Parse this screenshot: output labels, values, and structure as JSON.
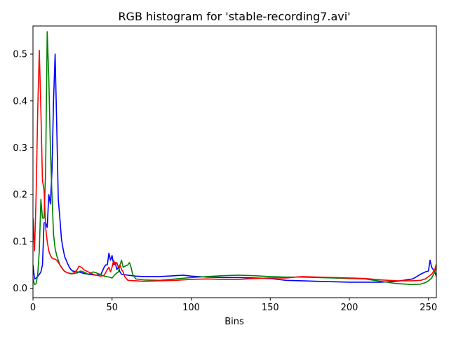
{
  "chart_data": {
    "type": "line",
    "title": "RGB histogram for 'stable-recording7.avi'",
    "xlabel": "Bins",
    "ylabel": "",
    "xlim": [
      0,
      255
    ],
    "ylim": [
      -0.02,
      0.56
    ],
    "xticks": [
      0,
      50,
      100,
      150,
      200,
      250
    ],
    "yticks": [
      0.0,
      0.1,
      0.2,
      0.3,
      0.4,
      0.5
    ],
    "grid": false,
    "series": [
      {
        "color": "#0000ff",
        "points": [
          [
            0,
            0.05
          ],
          [
            1,
            0.02
          ],
          [
            2,
            0.022
          ],
          [
            3,
            0.025
          ],
          [
            4,
            0.03
          ],
          [
            5,
            0.035
          ],
          [
            6,
            0.05
          ],
          [
            7,
            0.14
          ],
          [
            8,
            0.14
          ],
          [
            9,
            0.13
          ],
          [
            10,
            0.2
          ],
          [
            11,
            0.18
          ],
          [
            12,
            0.25
          ],
          [
            13,
            0.4
          ],
          [
            14,
            0.5
          ],
          [
            15,
            0.35
          ],
          [
            16,
            0.19
          ],
          [
            17,
            0.15
          ],
          [
            18,
            0.105
          ],
          [
            19,
            0.085
          ],
          [
            20,
            0.068
          ],
          [
            21,
            0.06
          ],
          [
            22,
            0.052
          ],
          [
            23,
            0.045
          ],
          [
            24,
            0.04
          ],
          [
            25,
            0.037
          ],
          [
            28,
            0.035
          ],
          [
            30,
            0.034
          ],
          [
            32,
            0.032
          ],
          [
            35,
            0.03
          ],
          [
            40,
            0.028
          ],
          [
            43,
            0.03
          ],
          [
            45,
            0.045
          ],
          [
            46,
            0.05
          ],
          [
            47,
            0.05
          ],
          [
            48,
            0.075
          ],
          [
            49,
            0.06
          ],
          [
            50,
            0.07
          ],
          [
            51,
            0.05
          ],
          [
            52,
            0.055
          ],
          [
            53,
            0.04
          ],
          [
            54,
            0.045
          ],
          [
            55,
            0.035
          ],
          [
            56,
            0.03
          ],
          [
            60,
            0.028
          ],
          [
            65,
            0.026
          ],
          [
            70,
            0.025
          ],
          [
            80,
            0.025
          ],
          [
            90,
            0.027
          ],
          [
            95,
            0.028
          ],
          [
            100,
            0.026
          ],
          [
            110,
            0.024
          ],
          [
            120,
            0.023
          ],
          [
            130,
            0.023
          ],
          [
            140,
            0.022
          ],
          [
            150,
            0.021
          ],
          [
            160,
            0.017
          ],
          [
            170,
            0.016
          ],
          [
            180,
            0.015
          ],
          [
            190,
            0.014
          ],
          [
            200,
            0.013
          ],
          [
            210,
            0.013
          ],
          [
            220,
            0.013
          ],
          [
            230,
            0.015
          ],
          [
            240,
            0.02
          ],
          [
            245,
            0.03
          ],
          [
            248,
            0.035
          ],
          [
            250,
            0.037
          ],
          [
            251,
            0.06
          ],
          [
            252,
            0.045
          ],
          [
            253,
            0.04
          ],
          [
            254,
            0.035
          ],
          [
            255,
            0.025
          ]
        ]
      },
      {
        "color": "#008000",
        "points": [
          [
            0,
            0.02
          ],
          [
            1,
            0.008
          ],
          [
            2,
            0.01
          ],
          [
            3,
            0.03
          ],
          [
            4,
            0.08
          ],
          [
            5,
            0.19
          ],
          [
            6,
            0.15
          ],
          [
            7,
            0.15
          ],
          [
            8,
            0.25
          ],
          [
            9,
            0.548
          ],
          [
            10,
            0.45
          ],
          [
            11,
            0.3
          ],
          [
            12,
            0.2
          ],
          [
            13,
            0.115
          ],
          [
            14,
            0.085
          ],
          [
            15,
            0.07
          ],
          [
            16,
            0.06
          ],
          [
            17,
            0.05
          ],
          [
            18,
            0.045
          ],
          [
            19,
            0.04
          ],
          [
            20,
            0.036
          ],
          [
            22,
            0.033
          ],
          [
            25,
            0.031
          ],
          [
            28,
            0.033
          ],
          [
            30,
            0.037
          ],
          [
            32,
            0.035
          ],
          [
            35,
            0.03
          ],
          [
            38,
            0.035
          ],
          [
            40,
            0.033
          ],
          [
            45,
            0.026
          ],
          [
            48,
            0.024
          ],
          [
            50,
            0.022
          ],
          [
            52,
            0.03
          ],
          [
            54,
            0.035
          ],
          [
            55,
            0.05
          ],
          [
            56,
            0.06
          ],
          [
            57,
            0.045
          ],
          [
            58,
            0.047
          ],
          [
            60,
            0.05
          ],
          [
            61,
            0.055
          ],
          [
            62,
            0.045
          ],
          [
            63,
            0.03
          ],
          [
            65,
            0.02
          ],
          [
            70,
            0.018
          ],
          [
            80,
            0.017
          ],
          [
            90,
            0.02
          ],
          [
            100,
            0.023
          ],
          [
            110,
            0.025
          ],
          [
            120,
            0.027
          ],
          [
            130,
            0.028
          ],
          [
            140,
            0.027
          ],
          [
            150,
            0.025
          ],
          [
            160,
            0.024
          ],
          [
            170,
            0.024
          ],
          [
            180,
            0.023
          ],
          [
            190,
            0.022
          ],
          [
            200,
            0.021
          ],
          [
            210,
            0.02
          ],
          [
            220,
            0.015
          ],
          [
            230,
            0.01
          ],
          [
            240,
            0.008
          ],
          [
            245,
            0.009
          ],
          [
            248,
            0.012
          ],
          [
            250,
            0.016
          ],
          [
            252,
            0.022
          ],
          [
            254,
            0.035
          ],
          [
            255,
            0.05
          ]
        ]
      },
      {
        "color": "#ff0000",
        "points": [
          [
            0,
            0.15
          ],
          [
            1,
            0.08
          ],
          [
            2,
            0.2
          ],
          [
            3,
            0.38
          ],
          [
            4,
            0.508
          ],
          [
            5,
            0.38
          ],
          [
            6,
            0.23
          ],
          [
            7,
            0.21
          ],
          [
            8,
            0.13
          ],
          [
            9,
            0.1
          ],
          [
            10,
            0.08
          ],
          [
            11,
            0.07
          ],
          [
            12,
            0.065
          ],
          [
            13,
            0.063
          ],
          [
            14,
            0.062
          ],
          [
            15,
            0.06
          ],
          [
            16,
            0.055
          ],
          [
            17,
            0.05
          ],
          [
            18,
            0.045
          ],
          [
            19,
            0.04
          ],
          [
            20,
            0.036
          ],
          [
            22,
            0.033
          ],
          [
            24,
            0.031
          ],
          [
            26,
            0.033
          ],
          [
            28,
            0.04
          ],
          [
            29,
            0.047
          ],
          [
            30,
            0.046
          ],
          [
            31,
            0.044
          ],
          [
            32,
            0.04
          ],
          [
            35,
            0.035
          ],
          [
            38,
            0.03
          ],
          [
            40,
            0.028
          ],
          [
            43,
            0.026
          ],
          [
            45,
            0.028
          ],
          [
            47,
            0.04
          ],
          [
            48,
            0.045
          ],
          [
            49,
            0.035
          ],
          [
            50,
            0.045
          ],
          [
            51,
            0.06
          ],
          [
            52,
            0.05
          ],
          [
            53,
            0.055
          ],
          [
            54,
            0.045
          ],
          [
            55,
            0.05
          ],
          [
            56,
            0.04
          ],
          [
            57,
            0.035
          ],
          [
            58,
            0.025
          ],
          [
            60,
            0.017
          ],
          [
            65,
            0.016
          ],
          [
            70,
            0.015
          ],
          [
            80,
            0.016
          ],
          [
            90,
            0.017
          ],
          [
            100,
            0.019
          ],
          [
            110,
            0.02
          ],
          [
            120,
            0.019
          ],
          [
            130,
            0.019
          ],
          [
            140,
            0.021
          ],
          [
            150,
            0.022
          ],
          [
            160,
            0.022
          ],
          [
            170,
            0.025
          ],
          [
            180,
            0.024
          ],
          [
            190,
            0.023
          ],
          [
            200,
            0.022
          ],
          [
            210,
            0.021
          ],
          [
            220,
            0.018
          ],
          [
            230,
            0.016
          ],
          [
            240,
            0.016
          ],
          [
            245,
            0.017
          ],
          [
            248,
            0.02
          ],
          [
            250,
            0.025
          ],
          [
            252,
            0.03
          ],
          [
            254,
            0.04
          ],
          [
            255,
            0.052
          ]
        ]
      }
    ]
  }
}
